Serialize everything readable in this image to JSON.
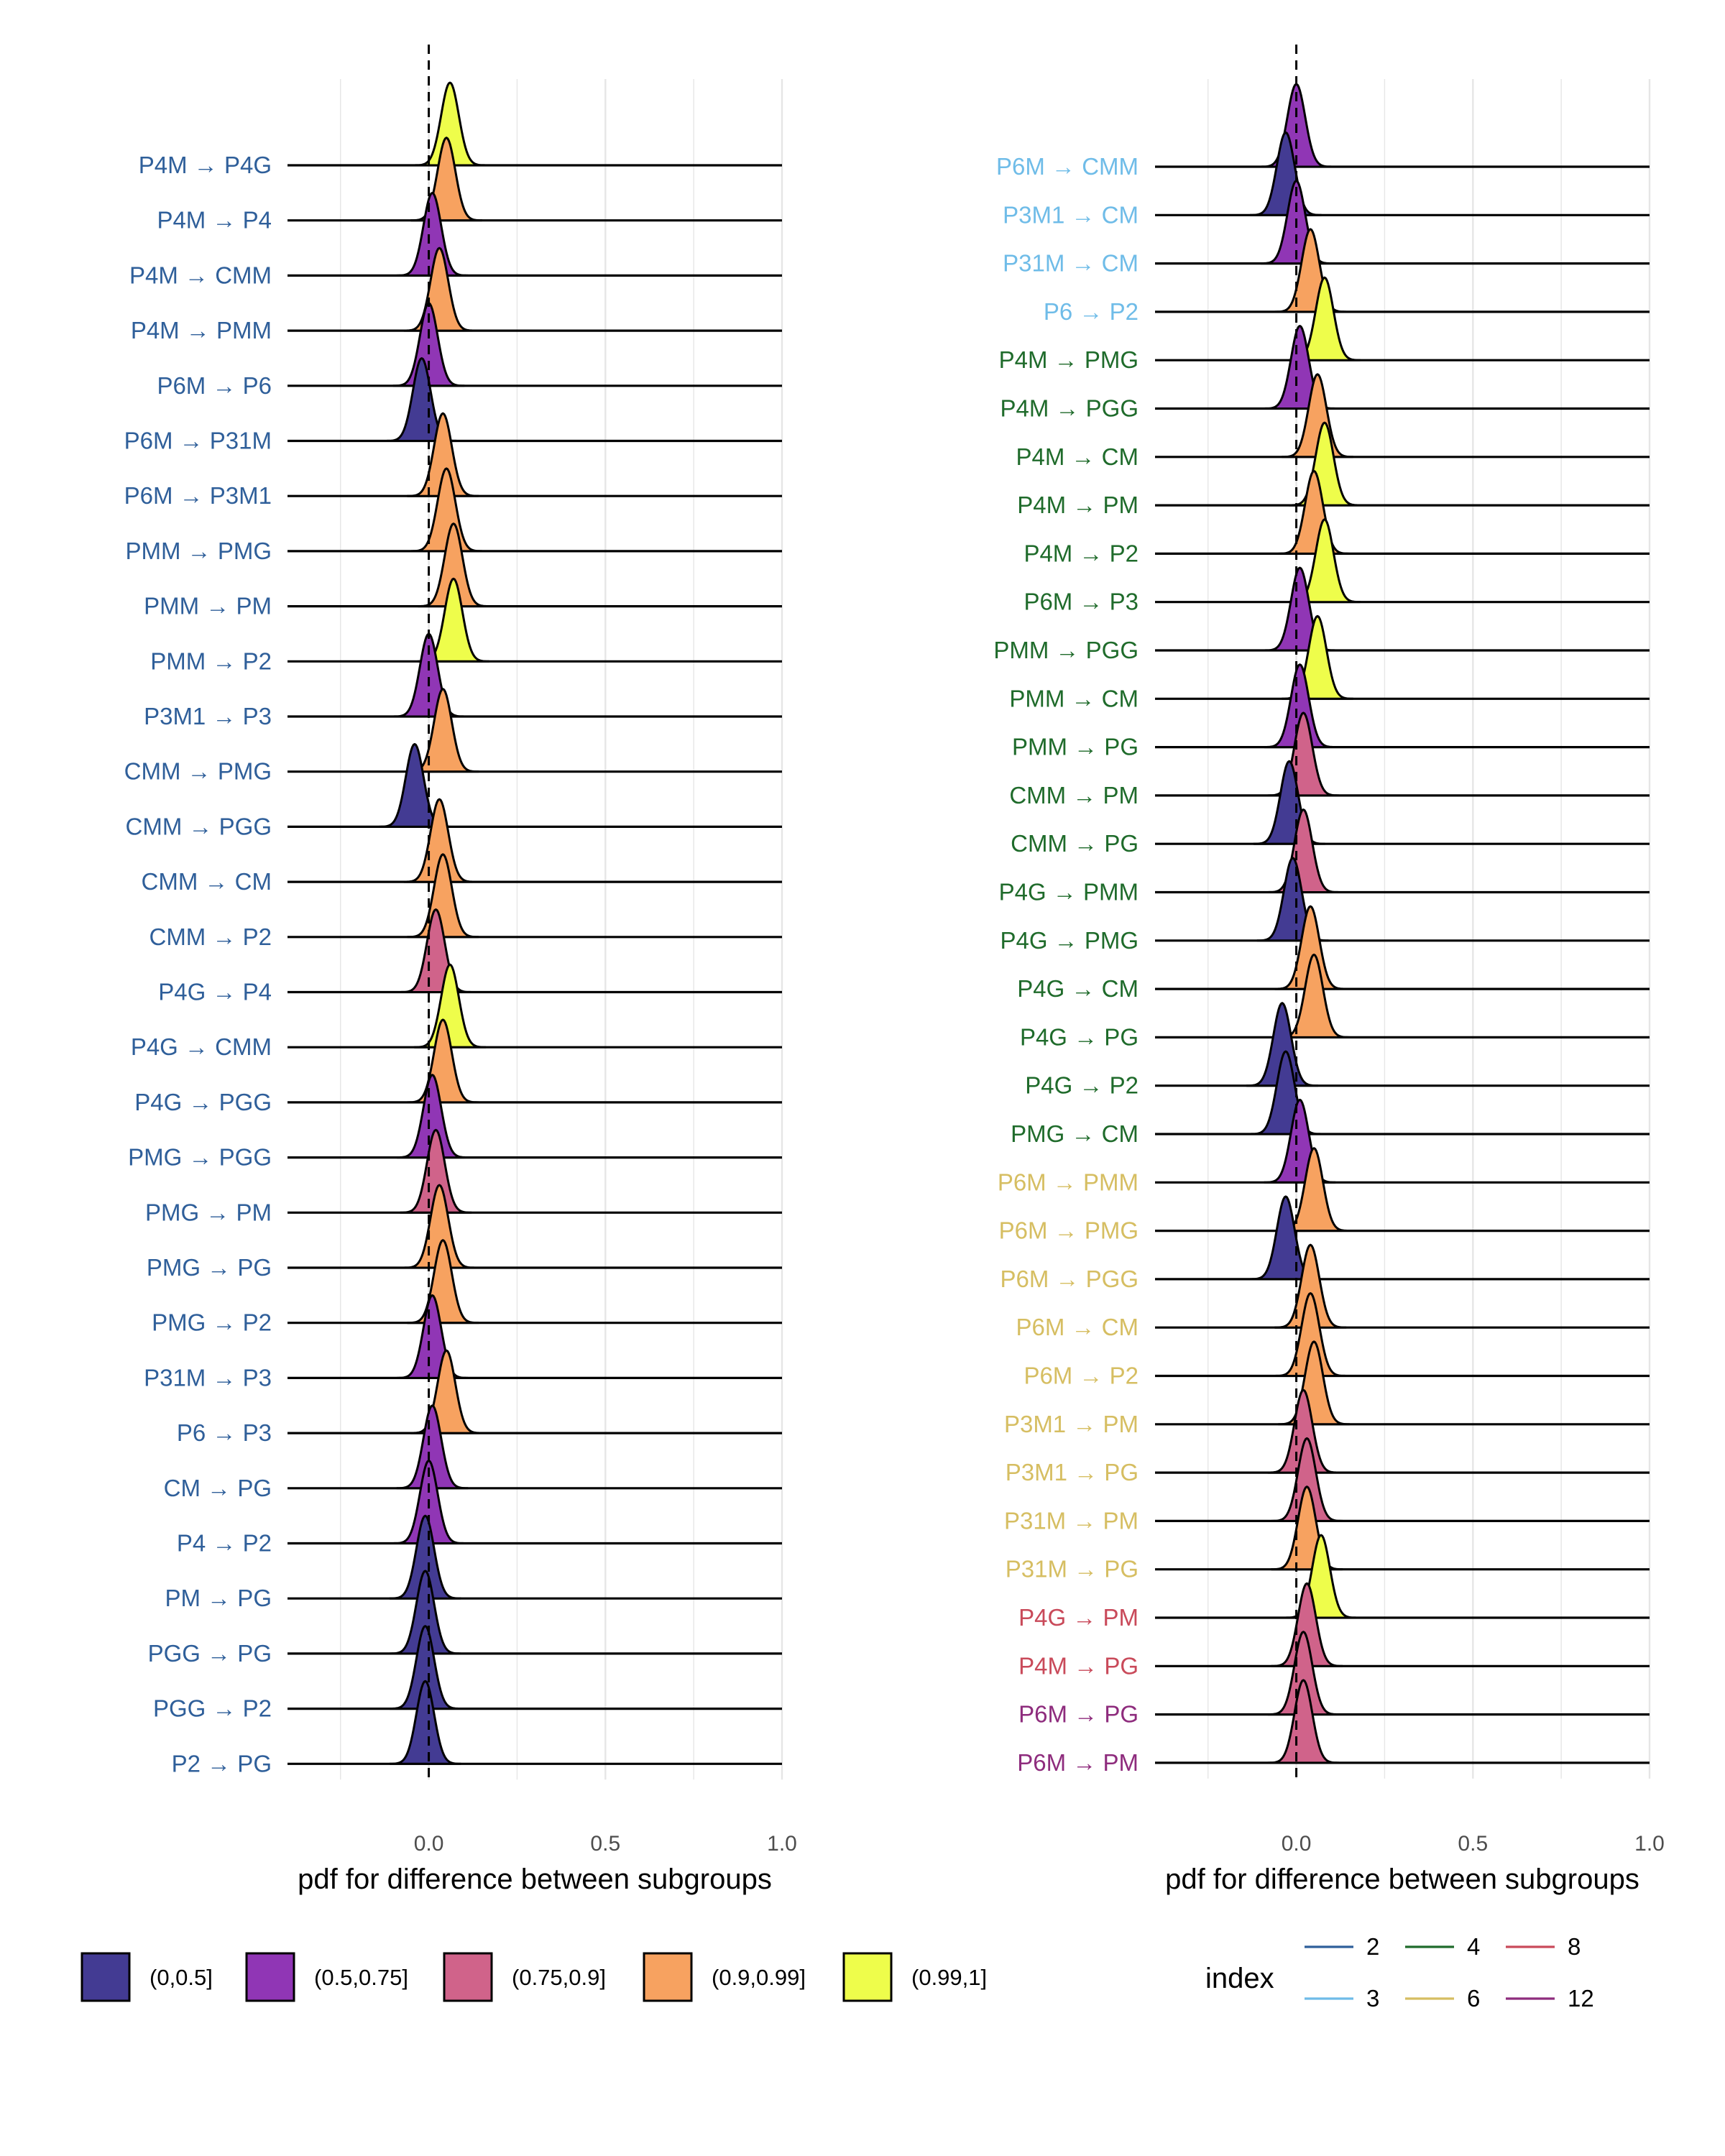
{
  "colors": {
    "fill": {
      "(0,0.5]": "#433b93",
      "(0.5,0.75]": "#9036b5",
      "(0.75,0.9]": "#d0638a",
      "(0.9,0.99]": "#f7a260",
      "(0.99,1]": "#eefd4b"
    },
    "index": {
      "2": "#2f5f9a",
      "3": "#6fbce8",
      "4": "#1f6b2b",
      "6": "#d6be62",
      "8": "#c94a5a",
      "12": "#8e2c7d"
    }
  },
  "chart_data": [
    {
      "type": "ridgeline",
      "title": "",
      "xlabel": "pdf for difference between subgroups",
      "ylabel": "",
      "xlim": [
        -0.4,
        1.0
      ],
      "x_ticks": [
        "0.0",
        "0.5",
        "1.0"
      ],
      "x_tick_values": [
        0.0,
        0.5,
        1.0
      ],
      "reference_line_x": 0.0,
      "grid": true,
      "rows": [
        {
          "label": "P4M → P4G",
          "index": 2,
          "mean": 0.06,
          "sd": 0.025,
          "category": "(0.99,1]"
        },
        {
          "label": "P4M → P4",
          "index": 2,
          "mean": 0.05,
          "sd": 0.025,
          "category": "(0.9,0.99]"
        },
        {
          "label": "P4M → CMM",
          "index": 2,
          "mean": 0.01,
          "sd": 0.025,
          "category": "(0.5,0.75]"
        },
        {
          "label": "P4M → PMM",
          "index": 2,
          "mean": 0.03,
          "sd": 0.025,
          "category": "(0.9,0.99]"
        },
        {
          "label": "P6M → P6",
          "index": 2,
          "mean": 0.0,
          "sd": 0.025,
          "category": "(0.5,0.75]"
        },
        {
          "label": "P6M → P31M",
          "index": 2,
          "mean": -0.02,
          "sd": 0.025,
          "category": "(0,0.5]"
        },
        {
          "label": "P6M → P3M1",
          "index": 2,
          "mean": 0.04,
          "sd": 0.025,
          "category": "(0.9,0.99]"
        },
        {
          "label": "PMM → PMG",
          "index": 2,
          "mean": 0.05,
          "sd": 0.025,
          "category": "(0.9,0.99]"
        },
        {
          "label": "PMM → PM",
          "index": 2,
          "mean": 0.07,
          "sd": 0.025,
          "category": "(0.9,0.99]"
        },
        {
          "label": "PMM → P2",
          "index": 2,
          "mean": 0.07,
          "sd": 0.025,
          "category": "(0.99,1]"
        },
        {
          "label": "P3M1 → P3",
          "index": 2,
          "mean": 0.0,
          "sd": 0.025,
          "category": "(0.5,0.75]"
        },
        {
          "label": "CMM → PMG",
          "index": 2,
          "mean": 0.04,
          "sd": 0.025,
          "category": "(0.9,0.99]"
        },
        {
          "label": "CMM → PGG",
          "index": 2,
          "mean": -0.04,
          "sd": 0.025,
          "category": "(0,0.5]"
        },
        {
          "label": "CMM → CM",
          "index": 2,
          "mean": 0.03,
          "sd": 0.025,
          "category": "(0.9,0.99]"
        },
        {
          "label": "CMM → P2",
          "index": 2,
          "mean": 0.04,
          "sd": 0.025,
          "category": "(0.9,0.99]"
        },
        {
          "label": "P4G → P4",
          "index": 2,
          "mean": 0.02,
          "sd": 0.025,
          "category": "(0.75,0.9]"
        },
        {
          "label": "P4G → CMM",
          "index": 2,
          "mean": 0.06,
          "sd": 0.025,
          "category": "(0.99,1]"
        },
        {
          "label": "P4G → PGG",
          "index": 2,
          "mean": 0.04,
          "sd": 0.025,
          "category": "(0.9,0.99]"
        },
        {
          "label": "PMG → PGG",
          "index": 2,
          "mean": 0.01,
          "sd": 0.025,
          "category": "(0.5,0.75]"
        },
        {
          "label": "PMG → PM",
          "index": 2,
          "mean": 0.02,
          "sd": 0.025,
          "category": "(0.75,0.9]"
        },
        {
          "label": "PMG → PG",
          "index": 2,
          "mean": 0.03,
          "sd": 0.025,
          "category": "(0.9,0.99]"
        },
        {
          "label": "PMG → P2",
          "index": 2,
          "mean": 0.04,
          "sd": 0.025,
          "category": "(0.9,0.99]"
        },
        {
          "label": "P31M → P3",
          "index": 2,
          "mean": 0.01,
          "sd": 0.025,
          "category": "(0.5,0.75]"
        },
        {
          "label": "P6 → P3",
          "index": 2,
          "mean": 0.05,
          "sd": 0.025,
          "category": "(0.9,0.99]"
        },
        {
          "label": "CM → PG",
          "index": 2,
          "mean": 0.01,
          "sd": 0.025,
          "category": "(0.5,0.75]"
        },
        {
          "label": "P4 → P2",
          "index": 2,
          "mean": 0.0,
          "sd": 0.025,
          "category": "(0.5,0.75]"
        },
        {
          "label": "PM → PG",
          "index": 2,
          "mean": -0.01,
          "sd": 0.025,
          "category": "(0,0.5]"
        },
        {
          "label": "PGG → PG",
          "index": 2,
          "mean": -0.01,
          "sd": 0.025,
          "category": "(0,0.5]"
        },
        {
          "label": "PGG → P2",
          "index": 2,
          "mean": -0.01,
          "sd": 0.025,
          "category": "(0,0.5]"
        },
        {
          "label": "P2 → PG",
          "index": 2,
          "mean": -0.01,
          "sd": 0.025,
          "category": "(0,0.5]"
        }
      ]
    },
    {
      "type": "ridgeline",
      "title": "",
      "xlabel": "pdf for difference between subgroups",
      "ylabel": "",
      "xlim": [
        -0.4,
        1.0
      ],
      "x_ticks": [
        "0.0",
        "0.5",
        "1.0"
      ],
      "x_tick_values": [
        0.0,
        0.5,
        1.0
      ],
      "reference_line_x": 0.0,
      "grid": true,
      "rows": [
        {
          "label": "P6M → CMM",
          "index": 3,
          "mean": 0.0,
          "sd": 0.025,
          "category": "(0.5,0.75]"
        },
        {
          "label": "P3M1 → CM",
          "index": 3,
          "mean": -0.03,
          "sd": 0.025,
          "category": "(0,0.5]"
        },
        {
          "label": "P31M → CM",
          "index": 3,
          "mean": 0.0,
          "sd": 0.025,
          "category": "(0.5,0.75]"
        },
        {
          "label": "P6 → P2",
          "index": 3,
          "mean": 0.04,
          "sd": 0.025,
          "category": "(0.9,0.99]"
        },
        {
          "label": "P4M → PMG",
          "index": 4,
          "mean": 0.08,
          "sd": 0.025,
          "category": "(0.99,1]"
        },
        {
          "label": "P4M → PGG",
          "index": 4,
          "mean": 0.01,
          "sd": 0.025,
          "category": "(0.5,0.75]"
        },
        {
          "label": "P4M → CM",
          "index": 4,
          "mean": 0.06,
          "sd": 0.025,
          "category": "(0.9,0.99]"
        },
        {
          "label": "P4M → PM",
          "index": 4,
          "mean": 0.08,
          "sd": 0.025,
          "category": "(0.99,1]"
        },
        {
          "label": "P4M → P2",
          "index": 4,
          "mean": 0.05,
          "sd": 0.025,
          "category": "(0.9,0.99]"
        },
        {
          "label": "P6M → P3",
          "index": 4,
          "mean": 0.08,
          "sd": 0.025,
          "category": "(0.99,1]"
        },
        {
          "label": "PMM → PGG",
          "index": 4,
          "mean": 0.01,
          "sd": 0.025,
          "category": "(0.5,0.75]"
        },
        {
          "label": "PMM → CM",
          "index": 4,
          "mean": 0.06,
          "sd": 0.025,
          "category": "(0.99,1]"
        },
        {
          "label": "PMM → PG",
          "index": 4,
          "mean": 0.01,
          "sd": 0.025,
          "category": "(0.5,0.75]"
        },
        {
          "label": "CMM → PM",
          "index": 4,
          "mean": 0.02,
          "sd": 0.025,
          "category": "(0.75,0.9]"
        },
        {
          "label": "CMM → PG",
          "index": 4,
          "mean": -0.02,
          "sd": 0.025,
          "category": "(0,0.5]"
        },
        {
          "label": "P4G → PMM",
          "index": 4,
          "mean": 0.02,
          "sd": 0.025,
          "category": "(0.75,0.9]"
        },
        {
          "label": "P4G → PMG",
          "index": 4,
          "mean": -0.01,
          "sd": 0.025,
          "category": "(0,0.5]"
        },
        {
          "label": "P4G → CM",
          "index": 4,
          "mean": 0.04,
          "sd": 0.025,
          "category": "(0.9,0.99]"
        },
        {
          "label": "P4G → PG",
          "index": 4,
          "mean": 0.05,
          "sd": 0.025,
          "category": "(0.9,0.99]"
        },
        {
          "label": "P4G → P2",
          "index": 4,
          "mean": -0.04,
          "sd": 0.025,
          "category": "(0,0.5]"
        },
        {
          "label": "PMG → CM",
          "index": 4,
          "mean": -0.03,
          "sd": 0.025,
          "category": "(0,0.5]"
        },
        {
          "label": "P6M → PMM",
          "index": 6,
          "mean": 0.01,
          "sd": 0.025,
          "category": "(0.5,0.75]"
        },
        {
          "label": "P6M → PMG",
          "index": 6,
          "mean": 0.05,
          "sd": 0.025,
          "category": "(0.9,0.99]"
        },
        {
          "label": "P6M → PGG",
          "index": 6,
          "mean": -0.03,
          "sd": 0.025,
          "category": "(0,0.5]"
        },
        {
          "label": "P6M → CM",
          "index": 6,
          "mean": 0.04,
          "sd": 0.025,
          "category": "(0.9,0.99]"
        },
        {
          "label": "P6M → P2",
          "index": 6,
          "mean": 0.04,
          "sd": 0.025,
          "category": "(0.9,0.99]"
        },
        {
          "label": "P3M1 → PM",
          "index": 6,
          "mean": 0.05,
          "sd": 0.025,
          "category": "(0.9,0.99]"
        },
        {
          "label": "P3M1 → PG",
          "index": 6,
          "mean": 0.02,
          "sd": 0.025,
          "category": "(0.75,0.9]"
        },
        {
          "label": "P31M → PM",
          "index": 6,
          "mean": 0.03,
          "sd": 0.025,
          "category": "(0.75,0.9]"
        },
        {
          "label": "P31M → PG",
          "index": 6,
          "mean": 0.03,
          "sd": 0.025,
          "category": "(0.9,0.99]"
        },
        {
          "label": "P4G → PM",
          "index": 8,
          "mean": 0.07,
          "sd": 0.025,
          "category": "(0.99,1]"
        },
        {
          "label": "P4M → PG",
          "index": 8,
          "mean": 0.03,
          "sd": 0.025,
          "category": "(0.75,0.9]"
        },
        {
          "label": "P6M → PG",
          "index": 12,
          "mean": 0.02,
          "sd": 0.025,
          "category": "(0.75,0.9]"
        },
        {
          "label": "P6M → PM",
          "index": 12,
          "mean": 0.02,
          "sd": 0.025,
          "category": "(0.75,0.9]"
        }
      ]
    }
  ],
  "legend_fill": {
    "items": [
      "(0,0.5]",
      "(0.5,0.75]",
      "(0.75,0.9]",
      "(0.9,0.99]",
      "(0.99,1]"
    ]
  },
  "legend_index": {
    "title": "index",
    "items": [
      "2",
      "3",
      "4",
      "6",
      "8",
      "12"
    ]
  }
}
